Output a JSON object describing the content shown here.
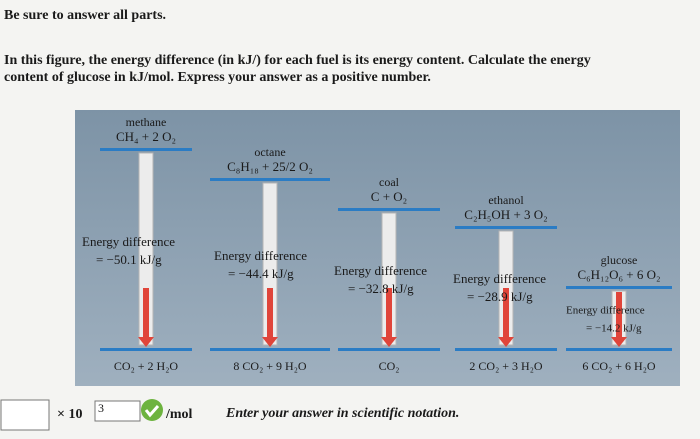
{
  "instructions": {
    "title": "Be sure to answer all parts.",
    "lines": [
      "In this figure, the energy difference (in kJ/) for each fuel is its energy content. Calculate the energy",
      "content of glucose in kJ/mol. Express your answer as a positive number."
    ]
  },
  "figure": {
    "fuels": [
      {
        "name": "methane",
        "reactants": "CH₄ + 2 O₂",
        "energy_label": "Energy difference",
        "energy_value": "= −50.1 kJ/g",
        "products": "CO₂ + 2 H₂O"
      },
      {
        "name": "octane",
        "reactants": "C₈H₁₈ + 25/2 O₂",
        "energy_label": "Energy difference",
        "energy_value": "= −44.4 kJ/g",
        "products": "8 CO₂ + 9 H₂O"
      },
      {
        "name": "coal",
        "reactants": "C + O₂",
        "energy_label": "Energy difference",
        "energy_value": "= −32.8 kJ/g",
        "products": "CO₂"
      },
      {
        "name": "ethanol",
        "reactants": "C₂H₅OH + 3 O₂",
        "energy_label": "Energy difference",
        "energy_value": "= −28.9 kJ/g",
        "products": "2 CO₂ + 3 H₂O"
      },
      {
        "name": "glucose",
        "reactants": "C₆H₁₂O₆ + 6 O₂",
        "energy_label": "Energy difference",
        "energy_value": "= −14.2 kJ/g",
        "products": "6 CO₂ + 6 H₂O"
      }
    ]
  },
  "answer": {
    "multiplier": "× 10",
    "exponent": "3",
    "unit": "/mol",
    "hint": "Enter your answer in scientific notation."
  }
}
